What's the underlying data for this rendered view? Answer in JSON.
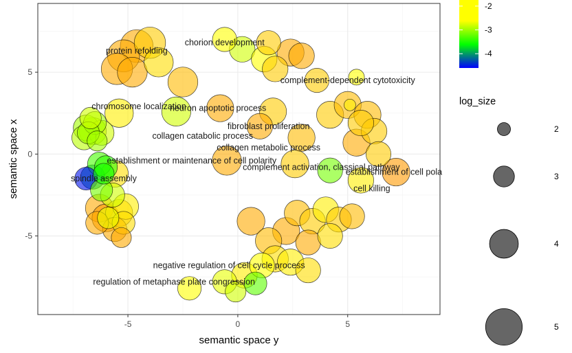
{
  "chart_data": {
    "type": "scatter",
    "xlabel": "semantic space y",
    "ylabel": "semantic space x",
    "xlim": [
      -9.1,
      9.2
    ],
    "ylim": [
      -9.8,
      9.2
    ],
    "xticks": [
      -5,
      0,
      5
    ],
    "yticks": [
      -5,
      0,
      5
    ],
    "grid": true,
    "color_legend": {
      "ticks": [
        -2,
        -3,
        -4
      ],
      "range": [
        -4.6,
        -1.6
      ],
      "colors": [
        "#0000ff",
        "#00ff00",
        "#ffff00",
        "#ff8c00"
      ]
    },
    "size_legend": {
      "title": "log_size",
      "values": [
        2,
        3,
        4,
        5
      ]
    },
    "points": [
      {
        "x": -4.6,
        "y": 6.6,
        "size": 5.0,
        "color": -1.6
      },
      {
        "x": -5.2,
        "y": 6.0,
        "size": 4.9,
        "color": -1.6
      },
      {
        "x": -4.0,
        "y": 6.8,
        "size": 4.8,
        "color": -1.8
      },
      {
        "x": -5.5,
        "y": 5.2,
        "size": 4.8,
        "color": -1.6
      },
      {
        "x": -4.8,
        "y": 5.0,
        "size": 4.6,
        "color": -1.6
      },
      {
        "x": -3.6,
        "y": 5.6,
        "size": 4.5,
        "color": -1.9
      },
      {
        "x": -2.5,
        "y": 4.4,
        "size": 4.6,
        "color": -1.7
      },
      {
        "x": -2.8,
        "y": 2.6,
        "size": 4.5,
        "color": -2.3
      },
      {
        "x": -5.4,
        "y": 2.5,
        "size": 4.4,
        "color": -2.0
      },
      {
        "x": -0.8,
        "y": 2.8,
        "size": 4.2,
        "color": -1.6
      },
      {
        "x": -0.6,
        "y": 7.0,
        "size": 3.8,
        "color": -2.1
      },
      {
        "x": 0.2,
        "y": 6.4,
        "size": 4.0,
        "color": -2.3
      },
      {
        "x": 1.4,
        "y": 6.8,
        "size": 3.8,
        "color": -1.8
      },
      {
        "x": 2.4,
        "y": 6.2,
        "size": 4.2,
        "color": -1.6
      },
      {
        "x": 1.2,
        "y": 5.8,
        "size": 4.0,
        "color": -2.1
      },
      {
        "x": 1.7,
        "y": 5.2,
        "size": 4.0,
        "color": -1.8
      },
      {
        "x": 2.9,
        "y": 6.0,
        "size": 4.0,
        "color": -1.6
      },
      {
        "x": 3.6,
        "y": 4.5,
        "size": 3.8,
        "color": -1.8
      },
      {
        "x": 5.4,
        "y": 4.7,
        "size": 2.6,
        "color": -2.1
      },
      {
        "x": 1.6,
        "y": 2.6,
        "size": 4.2,
        "color": -1.8
      },
      {
        "x": 1.0,
        "y": 1.7,
        "size": 4.0,
        "color": -1.6
      },
      {
        "x": 2.9,
        "y": 1.0,
        "size": 4.2,
        "color": -1.7
      },
      {
        "x": 2.6,
        "y": -0.6,
        "size": 4.3,
        "color": -1.8
      },
      {
        "x": -0.5,
        "y": -0.4,
        "size": 4.5,
        "color": -1.6
      },
      {
        "x": 4.2,
        "y": 2.4,
        "size": 4.2,
        "color": -1.8
      },
      {
        "x": 5.0,
        "y": 3.0,
        "size": 4.2,
        "color": -1.7
      },
      {
        "x": 5.9,
        "y": 2.4,
        "size": 4.2,
        "color": -1.7
      },
      {
        "x": 6.2,
        "y": 1.4,
        "size": 4.0,
        "color": -1.8
      },
      {
        "x": 5.6,
        "y": 1.9,
        "size": 4.0,
        "color": -1.8
      },
      {
        "x": 5.4,
        "y": 0.7,
        "size": 4.2,
        "color": -1.6
      },
      {
        "x": 6.4,
        "y": 0.0,
        "size": 3.9,
        "color": -1.8
      },
      {
        "x": 5.1,
        "y": 3.0,
        "size": 2.0,
        "color": -2.0
      },
      {
        "x": 4.2,
        "y": -1.0,
        "size": 3.9,
        "color": -2.7
      },
      {
        "x": 5.6,
        "y": -1.6,
        "size": 4.0,
        "color": -2.0
      },
      {
        "x": 7.2,
        "y": -1.1,
        "size": 4.3,
        "color": -1.5
      },
      {
        "x": -6.6,
        "y": 1.4,
        "size": 4.2,
        "color": -2.4
      },
      {
        "x": -6.9,
        "y": 1.6,
        "size": 4.0,
        "color": -2.5
      },
      {
        "x": -6.2,
        "y": 1.3,
        "size": 3.9,
        "color": -2.3
      },
      {
        "x": -7.0,
        "y": 1.0,
        "size": 3.8,
        "color": -2.4
      },
      {
        "x": -6.5,
        "y": 1.9,
        "size": 3.6,
        "color": -2.5
      },
      {
        "x": -6.8,
        "y": 1.3,
        "size": 3.5,
        "color": -2.5
      },
      {
        "x": -6.7,
        "y": 2.2,
        "size": 3.4,
        "color": -2.3
      },
      {
        "x": -6.4,
        "y": 0.8,
        "size": 3.2,
        "color": -2.5
      },
      {
        "x": -5.6,
        "y": -1.2,
        "size": 4.2,
        "color": -1.9
      },
      {
        "x": -6.3,
        "y": -0.6,
        "size": 3.7,
        "color": -2.9
      },
      {
        "x": -6.0,
        "y": -0.8,
        "size": 3.6,
        "color": -3.0
      },
      {
        "x": -6.1,
        "y": -1.2,
        "size": 3.3,
        "color": -3.1
      },
      {
        "x": -6.6,
        "y": -1.4,
        "size": 3.8,
        "color": -3.9
      },
      {
        "x": -6.9,
        "y": -1.5,
        "size": 3.6,
        "color": -4.5
      },
      {
        "x": -6.2,
        "y": -2.2,
        "size": 3.5,
        "color": -2.7
      },
      {
        "x": -6.3,
        "y": -3.3,
        "size": 4.3,
        "color": -1.6
      },
      {
        "x": -6.0,
        "y": -3.9,
        "size": 4.3,
        "color": -1.5
      },
      {
        "x": -5.4,
        "y": -3.6,
        "size": 4.2,
        "color": -1.8
      },
      {
        "x": -5.1,
        "y": -3.2,
        "size": 4.0,
        "color": -2.0
      },
      {
        "x": -5.6,
        "y": -4.6,
        "size": 3.8,
        "color": -1.6
      },
      {
        "x": -6.4,
        "y": -4.2,
        "size": 3.6,
        "color": -1.6
      },
      {
        "x": -5.2,
        "y": -4.2,
        "size": 3.6,
        "color": -1.9
      },
      {
        "x": -5.9,
        "y": -3.9,
        "size": 3.4,
        "color": -2.2
      },
      {
        "x": -5.7,
        "y": -2.5,
        "size": 3.8,
        "color": -2.3
      },
      {
        "x": -5.3,
        "y": -5.1,
        "size": 3.2,
        "color": -1.6
      },
      {
        "x": 0.6,
        "y": -4.1,
        "size": 4.3,
        "color": -1.6
      },
      {
        "x": 2.2,
        "y": -4.7,
        "size": 4.2,
        "color": -1.6
      },
      {
        "x": 1.4,
        "y": -5.3,
        "size": 4.1,
        "color": -1.7
      },
      {
        "x": 2.7,
        "y": -3.6,
        "size": 4.0,
        "color": -1.7
      },
      {
        "x": 3.4,
        "y": -4.1,
        "size": 4.0,
        "color": -1.8
      },
      {
        "x": 4.0,
        "y": -3.4,
        "size": 4.0,
        "color": -2.0
      },
      {
        "x": 4.6,
        "y": -4.0,
        "size": 3.9,
        "color": -1.8
      },
      {
        "x": 5.2,
        "y": -3.8,
        "size": 3.9,
        "color": -1.7
      },
      {
        "x": 3.2,
        "y": -5.4,
        "size": 3.9,
        "color": -1.6
      },
      {
        "x": 4.2,
        "y": -5.0,
        "size": 3.9,
        "color": -1.9
      },
      {
        "x": 1.7,
        "y": -6.4,
        "size": 4.1,
        "color": -1.9
      },
      {
        "x": 2.4,
        "y": -6.6,
        "size": 4.1,
        "color": -2.0
      },
      {
        "x": 0.3,
        "y": -7.4,
        "size": 4.0,
        "color": -2.0
      },
      {
        "x": 1.1,
        "y": -6.8,
        "size": 3.9,
        "color": -2.1
      },
      {
        "x": 3.2,
        "y": -7.1,
        "size": 3.9,
        "color": -1.9
      },
      {
        "x": 0.8,
        "y": -7.9,
        "size": 3.6,
        "color": -2.8
      },
      {
        "x": -0.6,
        "y": -7.8,
        "size": 3.8,
        "color": -2.2
      },
      {
        "x": -2.2,
        "y": -8.2,
        "size": 3.7,
        "color": -2.1
      },
      {
        "x": -0.1,
        "y": -8.4,
        "size": 3.3,
        "color": -2.3
      }
    ],
    "labels": [
      {
        "text": "protein refolding",
        "x": -4.6,
        "y": 6.3
      },
      {
        "text": "chorion development",
        "x": -0.6,
        "y": 6.8
      },
      {
        "text": "complement-dependent cytotoxicity",
        "x": 5.0,
        "y": 4.5
      },
      {
        "text": "chromosome localization",
        "x": -4.5,
        "y": 2.9
      },
      {
        "text": "neuron apoptotic process",
        "x": -0.9,
        "y": 2.8
      },
      {
        "text": "fibroblast proliferation",
        "x": 1.4,
        "y": 1.7
      },
      {
        "text": "collagen catabolic process",
        "x": -1.6,
        "y": 1.1
      },
      {
        "text": "collagen metabolic process",
        "x": 1.4,
        "y": 0.4
      },
      {
        "text": "establishment or maintenance of cell polarity",
        "x": -2.1,
        "y": -0.4
      },
      {
        "text": "complement activation, classical pathway",
        "x": 3.8,
        "y": -0.8
      },
      {
        "text": "establishment of cell pola",
        "x": 7.1,
        "y": -1.1
      },
      {
        "text": "spindle assembly",
        "x": -6.1,
        "y": -1.5
      },
      {
        "text": "cell killing",
        "x": 6.1,
        "y": -2.1
      },
      {
        "text": "negative regulation of cell cycle process",
        "x": -0.4,
        "y": -6.8
      },
      {
        "text": "regulation of metaphase plate congression",
        "x": -2.9,
        "y": -7.8
      }
    ]
  }
}
